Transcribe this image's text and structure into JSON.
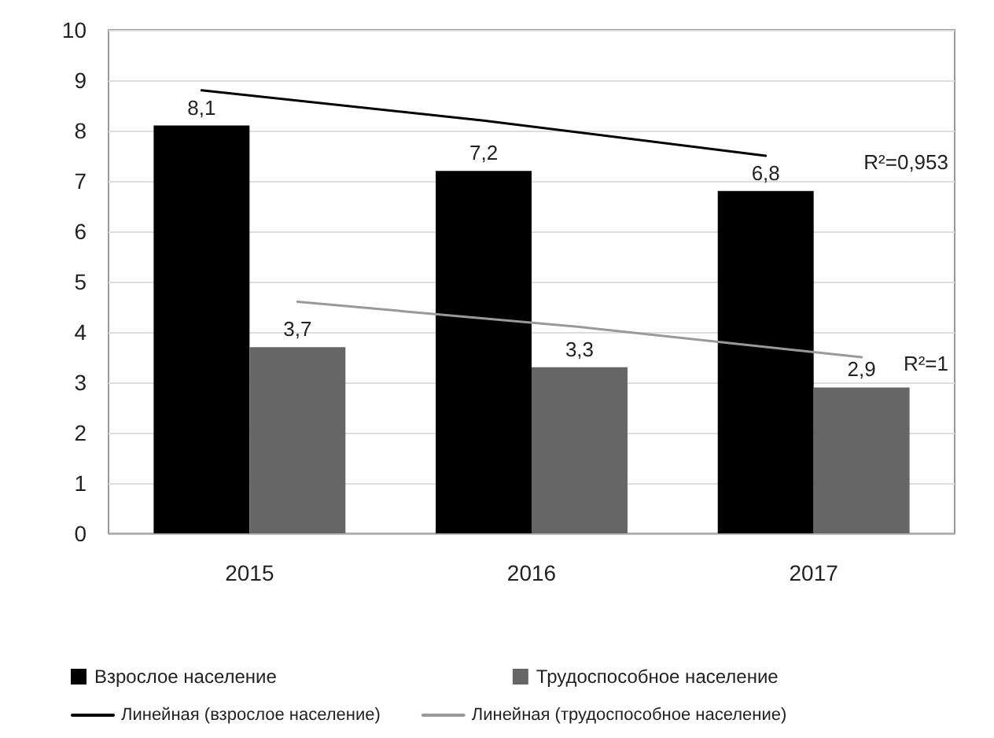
{
  "chart_data": {
    "type": "bar",
    "categories": [
      "2015",
      "2016",
      "2017"
    ],
    "series": [
      {
        "name": "Взрослое население",
        "color": "#000000",
        "values": [
          8.1,
          7.2,
          6.8
        ],
        "value_labels": [
          "8,1",
          "7,2",
          "6,8"
        ]
      },
      {
        "name": "Трудоспособное население",
        "color": "#666666",
        "values": [
          3.7,
          3.3,
          2.9
        ],
        "value_labels": [
          "3,7",
          "3,3",
          "2,9"
        ]
      },
      {
        "name": "Линейная (взрослое население)",
        "type": "line",
        "color": "#000000",
        "values": [
          8.8,
          8.2,
          7.5
        ]
      },
      {
        "name": "Линейная (трудоспособное население)",
        "type": "line",
        "color": "#999999",
        "values": [
          4.6,
          4.1,
          3.5
        ]
      }
    ],
    "ylim": [
      0,
      10
    ],
    "yticks": [
      0,
      1,
      2,
      3,
      4,
      5,
      6,
      7,
      8,
      9,
      10
    ],
    "grid": "y",
    "legend": "bottom",
    "marker": "none",
    "line_style": "solid",
    "annotations": [
      "R²=0,953",
      "R²=1"
    ]
  }
}
